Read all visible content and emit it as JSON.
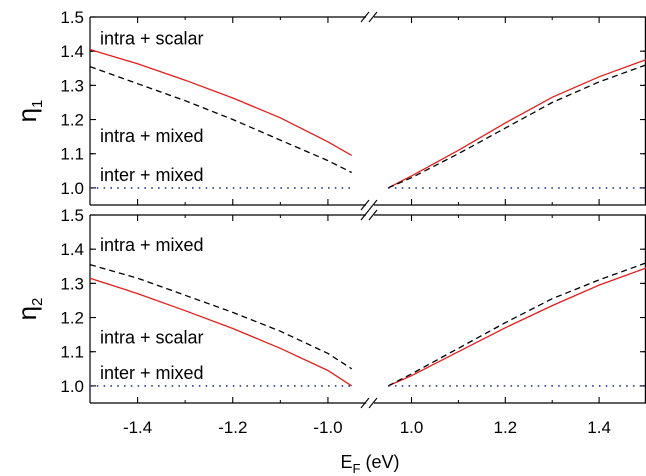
{
  "chart_data": {
    "type": "line",
    "xlabel": "E",
    "xlabel_sub": "F",
    "xlabel_unit": " (eV)",
    "x_ticks_left": [
      "-1.4",
      "-1.2",
      "-1.0"
    ],
    "x_ticks_right": [
      "1.0",
      "1.2",
      "1.4"
    ],
    "x_tick_values_left": [
      -1.4,
      -1.2,
      -1.0
    ],
    "x_tick_values_right": [
      1.0,
      1.2,
      1.4
    ],
    "xlim_left": [
      -1.5,
      -0.92
    ],
    "xlim_right": [
      0.92,
      1.5
    ],
    "x_axis_break": true,
    "ylim": [
      0.95,
      1.5
    ],
    "y_ticks": [
      "1.0",
      "1.1",
      "1.2",
      "1.3",
      "1.4",
      "1.5"
    ],
    "y_tick_values": [
      1.0,
      1.1,
      1.2,
      1.3,
      1.4,
      1.5
    ],
    "panels": [
      {
        "ylabel": "η",
        "ylabel_sub": "1",
        "annotations": [
          {
            "text": "intra + scalar",
            "x": -1.5,
            "y": 1.44
          },
          {
            "text": "intra + mixed",
            "x": -1.5,
            "y": 1.155
          },
          {
            "text": "inter + mixed",
            "x": -1.5,
            "y": 1.04
          }
        ],
        "series": [
          {
            "style": "solid",
            "color": "#e0201c",
            "left": {
              "x": [
                -1.5,
                -1.4,
                -1.3,
                -1.2,
                -1.1,
                -1.0,
                -0.95
              ],
              "y": [
                1.405,
                1.363,
                1.315,
                1.263,
                1.205,
                1.135,
                1.095
              ]
            },
            "right": {
              "x": [
                0.95,
                1.0,
                1.1,
                1.2,
                1.3,
                1.4,
                1.5
              ],
              "y": [
                1.0,
                1.035,
                1.11,
                1.19,
                1.265,
                1.325,
                1.375
              ]
            }
          },
          {
            "style": "dashed",
            "color": "#000000",
            "left": {
              "x": [
                -1.5,
                -1.4,
                -1.3,
                -1.2,
                -1.1,
                -1.0,
                -0.95
              ],
              "y": [
                1.355,
                1.305,
                1.255,
                1.2,
                1.14,
                1.08,
                1.045
              ]
            },
            "right": {
              "x": [
                0.95,
                1.0,
                1.1,
                1.2,
                1.3,
                1.4,
                1.5
              ],
              "y": [
                1.0,
                1.03,
                1.1,
                1.175,
                1.25,
                1.31,
                1.36
              ]
            }
          },
          {
            "style": "dotted",
            "color": "#2f3d8f",
            "left": {
              "x": [
                -1.5,
                -0.95
              ],
              "y": [
                1.0,
                1.0
              ]
            },
            "right": {
              "x": [
                0.95,
                1.5
              ],
              "y": [
                1.0,
                1.0
              ]
            }
          }
        ]
      },
      {
        "ylabel": "η",
        "ylabel_sub": "2",
        "annotations": [
          {
            "text": "intra + mixed",
            "x": -1.5,
            "y": 1.415
          },
          {
            "text": "intra + scalar",
            "x": -1.5,
            "y": 1.145
          },
          {
            "text": "inter + mixed",
            "x": -1.5,
            "y": 1.04
          }
        ],
        "series": [
          {
            "style": "solid",
            "color": "#e0201c",
            "left": {
              "x": [
                -1.5,
                -1.4,
                -1.3,
                -1.2,
                -1.1,
                -1.0,
                -0.95
              ],
              "y": [
                1.315,
                1.27,
                1.22,
                1.168,
                1.11,
                1.045,
                1.0
              ]
            },
            "right": {
              "x": [
                0.95,
                1.0,
                1.1,
                1.2,
                1.3,
                1.4,
                1.5
              ],
              "y": [
                1.0,
                1.03,
                1.1,
                1.17,
                1.235,
                1.295,
                1.345
              ]
            }
          },
          {
            "style": "dashed",
            "color": "#000000",
            "left": {
              "x": [
                -1.5,
                -1.4,
                -1.3,
                -1.2,
                -1.1,
                -1.0,
                -0.95
              ],
              "y": [
                1.355,
                1.315,
                1.265,
                1.215,
                1.16,
                1.095,
                1.05
              ]
            },
            "right": {
              "x": [
                0.95,
                1.0,
                1.1,
                1.2,
                1.3,
                1.4,
                1.5
              ],
              "y": [
                1.0,
                1.035,
                1.11,
                1.185,
                1.255,
                1.31,
                1.36
              ]
            }
          },
          {
            "style": "dotted",
            "color": "#2f3d8f",
            "left": {
              "x": [
                -1.5,
                -0.95
              ],
              "y": [
                1.0,
                1.0
              ]
            },
            "right": {
              "x": [
                0.95,
                1.5
              ],
              "y": [
                1.0,
                1.0
              ]
            }
          }
        ]
      }
    ]
  }
}
